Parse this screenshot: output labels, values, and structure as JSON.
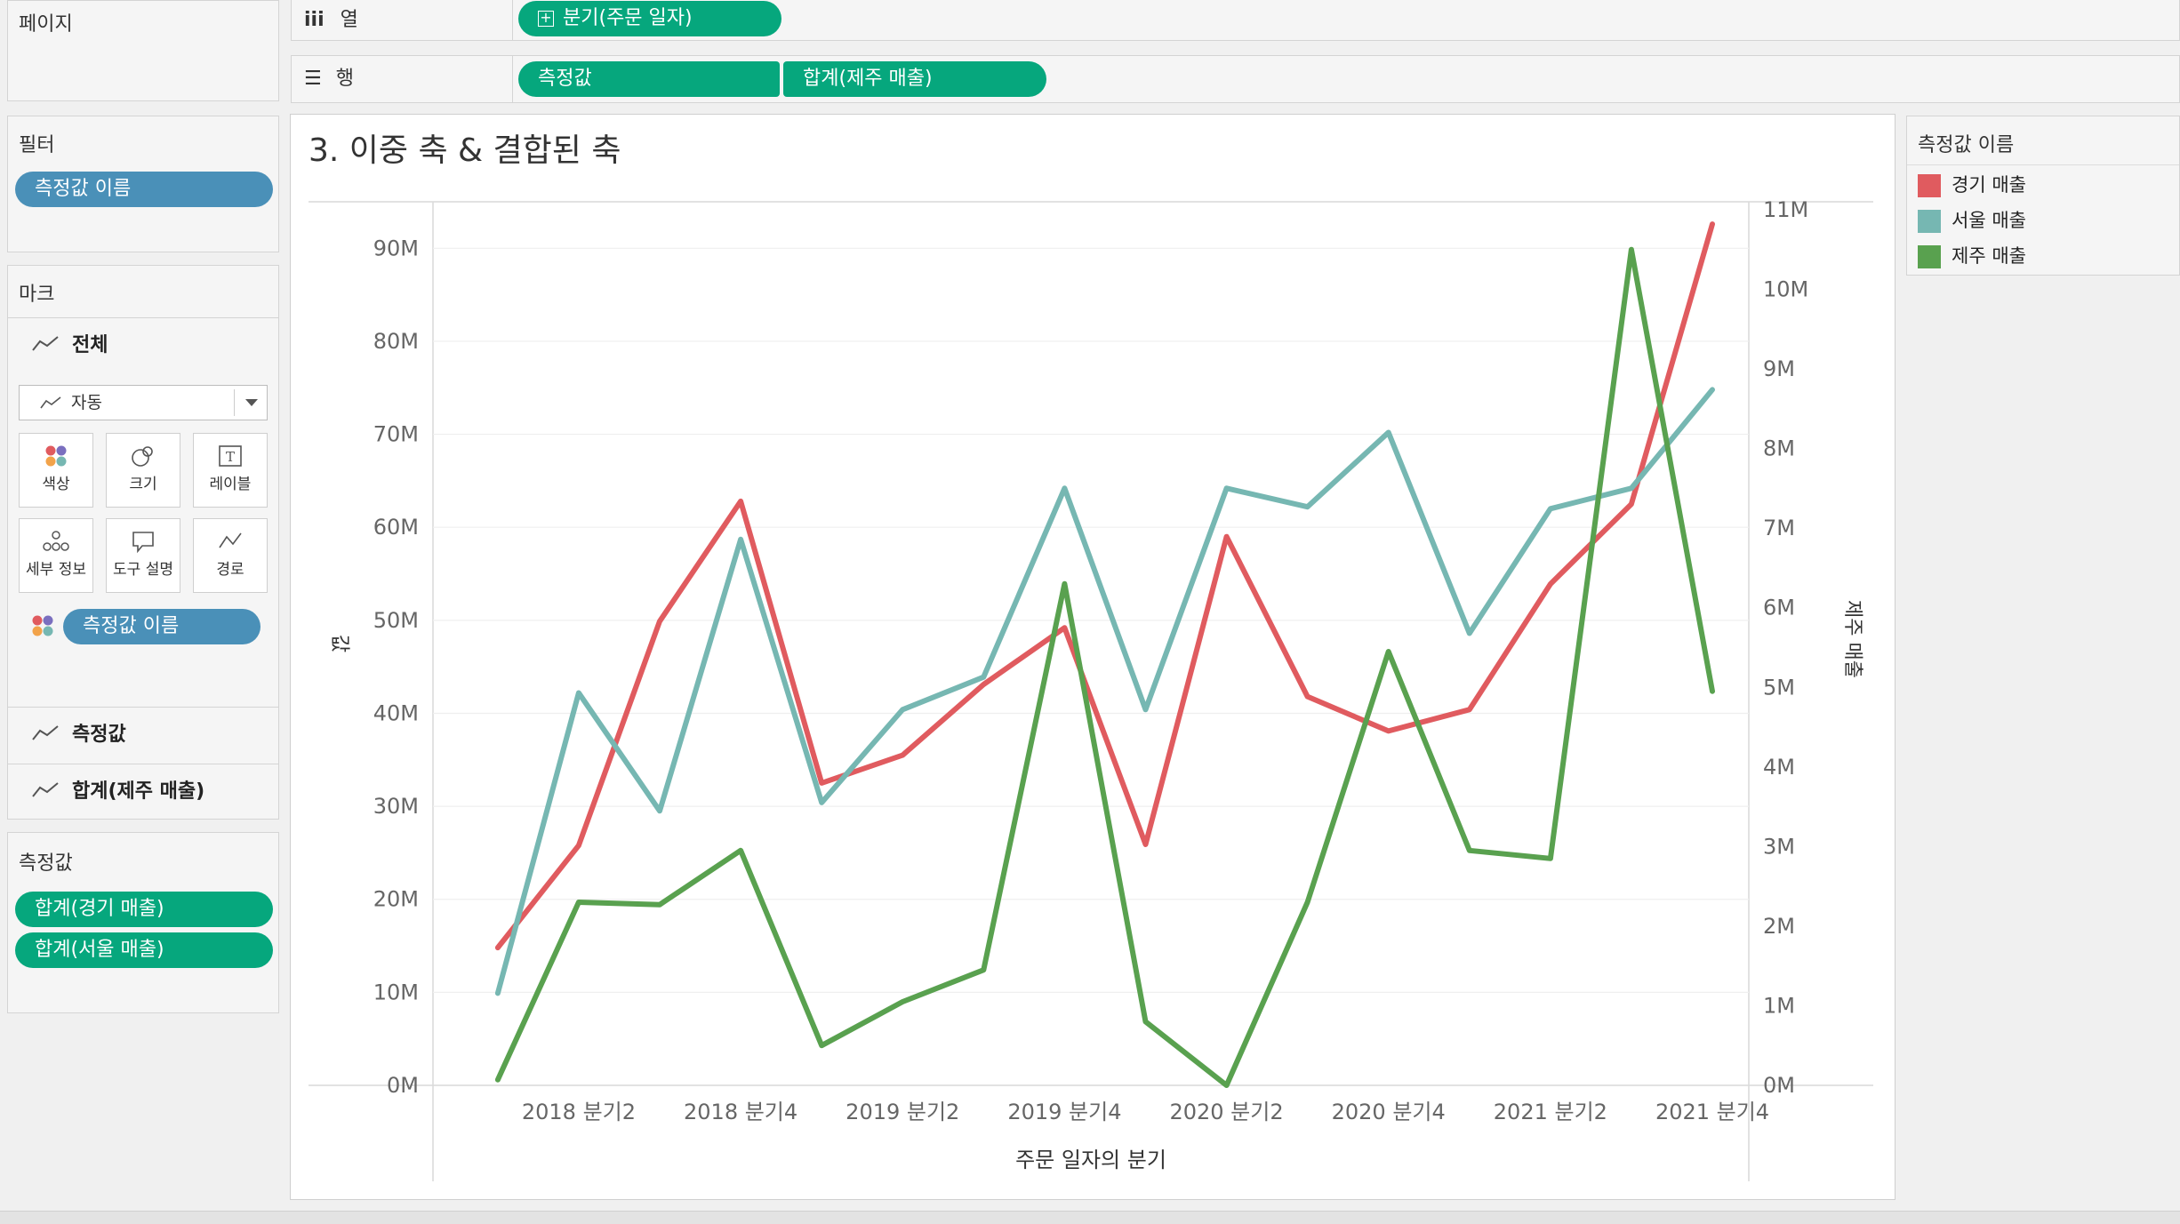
{
  "left": {
    "pages_title": "페이지",
    "filters_title": "필터",
    "filter_pill": "측정값 이름",
    "marks_title": "마크",
    "marks_all": "전체",
    "mark_type": "자동",
    "mark_buttons": [
      "색상",
      "크기",
      "레이블",
      "세부 정보",
      "도구 설명",
      "경로"
    ],
    "color_pill": "측정값 이름",
    "card_measure": "측정값",
    "card_sum": "합계(제주 매출)",
    "measures_title": "측정값",
    "measure_pills": [
      "합계(경기 매출)",
      "합계(서울 매출)"
    ]
  },
  "shelves": {
    "columns_label": "열",
    "columns_pill": "분기(주문 일자)",
    "rows_label": "행",
    "rows_pills": [
      "측정값",
      "합계(제주 매출)"
    ]
  },
  "legend": {
    "title": "측정값 이름",
    "items": [
      {
        "label": "경기 매출",
        "color": "#e05b5f"
      },
      {
        "label": "서울 매출",
        "color": "#76b7b2"
      },
      {
        "label": "제주 매출",
        "color": "#59a14f"
      }
    ]
  },
  "chart_data": {
    "type": "line",
    "title": "3. 이중 축 & 결합된 축",
    "xlabel": "주문 일자의 분기",
    "ylabel": "값",
    "y2label": "제주 매출",
    "x_ticks": [
      "2018 분기2",
      "2018 분기4",
      "2019 분기2",
      "2019 분기4",
      "2020 분기2",
      "2020 분기4",
      "2021 분기2",
      "2021 분기4"
    ],
    "y_ticks": [
      "0M",
      "10M",
      "20M",
      "30M",
      "40M",
      "50M",
      "60M",
      "70M",
      "80M",
      "90M"
    ],
    "y2_ticks": [
      "0M",
      "1M",
      "2M",
      "3M",
      "4M",
      "5M",
      "6M",
      "7M",
      "8M",
      "9M",
      "10M",
      "11M"
    ],
    "x": [
      "2018 분기1",
      "2018 분기2",
      "2018 분기3",
      "2018 분기4",
      "2019 분기1",
      "2019 분기2",
      "2019 분기3",
      "2019 분기4",
      "2020 분기1",
      "2020 분기2",
      "2020 분기3",
      "2020 분기4",
      "2021 분기1",
      "2021 분기2",
      "2021 분기3",
      "2021 분기4"
    ],
    "ylim": [
      0,
      95
    ],
    "y2lim": [
      0,
      11.1
    ],
    "series": [
      {
        "name": "경기 매출",
        "axis": "left",
        "color": "#e05b5f",
        "values": [
          14.8,
          25.8,
          49.9,
          62.8,
          32.5,
          35.5,
          43.1,
          49.2,
          25.9,
          59.0,
          41.8,
          38.1,
          40.4,
          53.9,
          62.5,
          92.6
        ]
      },
      {
        "name": "서울 매출",
        "axis": "left",
        "color": "#76b7b2",
        "values": [
          9.9,
          42.2,
          29.5,
          58.7,
          30.4,
          40.4,
          43.9,
          64.2,
          40.4,
          64.2,
          62.2,
          70.2,
          48.6,
          62.0,
          64.2,
          74.8
        ]
      },
      {
        "name": "제주 매출",
        "axis": "right",
        "color": "#59a14f",
        "values": [
          0.07,
          2.3,
          2.27,
          2.95,
          0.5,
          1.05,
          1.45,
          6.3,
          0.8,
          0.0,
          2.3,
          5.45,
          2.95,
          2.85,
          10.5,
          4.95
        ]
      }
    ]
  }
}
